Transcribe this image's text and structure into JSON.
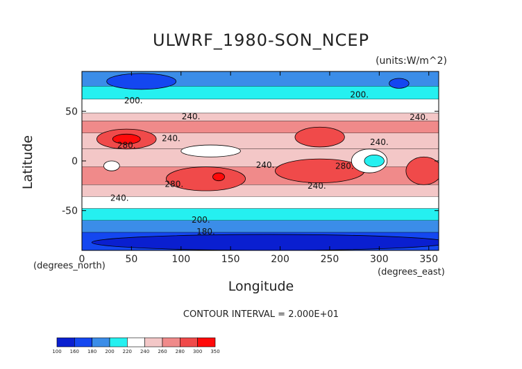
{
  "title": "ULWRF_1980-SON_NCEP",
  "units": "(units:W/m^2)",
  "xlabel": "Longitude",
  "ylabel": "Latitude",
  "x_units_note": "(degrees_east)",
  "y_units_note": "(degrees_north)",
  "contour_interval_text": "CONTOUR INTERVAL = 2.000E+01",
  "chart_data": {
    "type": "heatmap",
    "title": "ULWRF_1980-SON_NCEP",
    "xlabel": "Longitude",
    "ylabel": "Latitude",
    "xlim": [
      0,
      360
    ],
    "ylim": [
      -90,
      90
    ],
    "x_ticks": [
      0,
      50,
      100,
      150,
      200,
      250,
      300,
      350
    ],
    "y_ticks": [
      -50,
      0,
      50
    ],
    "colorbar": {
      "levels": [
        100,
        160,
        180,
        200,
        220,
        240,
        260,
        280,
        300,
        350
      ],
      "colors": [
        "#0a1fd0",
        "#1447f0",
        "#3b8de8",
        "#25f0f0",
        "#ffffff",
        "#f3c7c7",
        "#f08a8a",
        "#f04a4a",
        "#ff0a0a"
      ]
    },
    "zonal_bands": [
      {
        "lat_from": 90,
        "lat_to": 75,
        "level": 180
      },
      {
        "lat_from": 75,
        "lat_to": 62,
        "level": 200
      },
      {
        "lat_from": 62,
        "lat_to": 48,
        "level": 220
      },
      {
        "lat_from": 48,
        "lat_to": 40,
        "level": 240
      },
      {
        "lat_from": 40,
        "lat_to": 28,
        "level": 260
      },
      {
        "lat_from": 28,
        "lat_to": 12,
        "level": 240
      },
      {
        "lat_from": 12,
        "lat_to": -6,
        "level": 240
      },
      {
        "lat_from": -6,
        "lat_to": -24,
        "level": 260
      },
      {
        "lat_from": -24,
        "lat_to": -36,
        "level": 240
      },
      {
        "lat_from": -36,
        "lat_to": -48,
        "level": 220
      },
      {
        "lat_from": -48,
        "lat_to": -60,
        "level": 200
      },
      {
        "lat_from": -60,
        "lat_to": -72,
        "level": 180
      },
      {
        "lat_from": -72,
        "lat_to": -90,
        "level": 160
      }
    ],
    "features": [
      {
        "lon": 45,
        "lat": 22,
        "rx": 30,
        "ry": 10,
        "level": 280
      },
      {
        "lon": 45,
        "lat": 22,
        "rx": 14,
        "ry": 5,
        "level": 300
      },
      {
        "lon": 125,
        "lat": -18,
        "rx": 40,
        "ry": 12,
        "level": 280
      },
      {
        "lon": 138,
        "lat": -16,
        "rx": 6,
        "ry": 4,
        "level": 300
      },
      {
        "lon": 240,
        "lat": -10,
        "rx": 45,
        "ry": 12,
        "level": 280
      },
      {
        "lon": 345,
        "lat": -10,
        "rx": 18,
        "ry": 14,
        "level": 280
      },
      {
        "lon": 240,
        "lat": 24,
        "rx": 25,
        "ry": 10,
        "level": 280
      },
      {
        "lon": 30,
        "lat": -5,
        "rx": 8,
        "ry": 5,
        "level": 220
      },
      {
        "lon": 130,
        "lat": 10,
        "rx": 30,
        "ry": 6,
        "level": 220
      },
      {
        "lon": 290,
        "lat": 0,
        "rx": 18,
        "ry": 12,
        "level": 220
      },
      {
        "lon": 295,
        "lat": 0,
        "rx": 10,
        "ry": 6,
        "level": 200
      },
      {
        "lon": 60,
        "lat": 80,
        "rx": 35,
        "ry": 8,
        "level": 160
      },
      {
        "lon": 320,
        "lat": 78,
        "rx": 10,
        "ry": 5,
        "level": 160
      },
      {
        "lon": 190,
        "lat": -82,
        "rx": 180,
        "ry": 8,
        "level": 100
      }
    ],
    "contour_labels": [
      {
        "text": "200.",
        "lon": 52,
        "lat": 58
      },
      {
        "text": "240.",
        "lon": 110,
        "lat": 42
      },
      {
        "text": "280.",
        "lon": 45,
        "lat": 13
      },
      {
        "text": "240.",
        "lon": 90,
        "lat": 20
      },
      {
        "text": "240.",
        "lon": 185,
        "lat": -7
      },
      {
        "text": "280.",
        "lon": 93,
        "lat": -26
      },
      {
        "text": "240.",
        "lon": 38,
        "lat": -40
      },
      {
        "text": "240.",
        "lon": 237,
        "lat": -28
      },
      {
        "text": "280.",
        "lon": 265,
        "lat": -8
      },
      {
        "text": "240.",
        "lon": 300,
        "lat": 16
      },
      {
        "text": "240.",
        "lon": 340,
        "lat": 41
      },
      {
        "text": "200.",
        "lon": 280,
        "lat": 64
      },
      {
        "text": "200.",
        "lon": 120,
        "lat": -62
      },
      {
        "text": "180.",
        "lon": 125,
        "lat": -74
      }
    ]
  }
}
